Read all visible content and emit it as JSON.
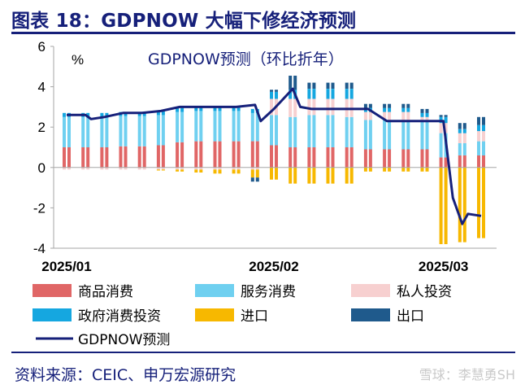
{
  "header": {
    "title": "图表 18：GDPNOW 大幅下修经济预测"
  },
  "footer": {
    "source": "资料来源：CEIC、申万宏源研究",
    "watermark": "雪球：李慧勇SH"
  },
  "colors": {
    "goods": "#e06666",
    "services": "#6fd0f0",
    "private_investment": "#f7d0d0",
    "government": "#15a7e0",
    "imports": "#f7b800",
    "exports": "#1f5a8c",
    "gdpnow": "#16207a",
    "title": "#16207a"
  },
  "chart_data": {
    "type": "bar",
    "stacked": true,
    "title": "GDPNOW预测（环比折年）",
    "unit_label": "%",
    "ylim": [
      -4,
      6
    ],
    "yticks": [
      "-4",
      "-2",
      "0",
      "2",
      "4",
      "6"
    ],
    "xtick_labels": [
      "2025/01",
      "2025/02",
      "2025/03"
    ],
    "xtick_at_update": [
      0,
      11,
      20
    ],
    "n_updates": 23,
    "legend": [
      {
        "key": "goods",
        "label": "商品消费"
      },
      {
        "key": "services",
        "label": "服务消费"
      },
      {
        "key": "private_investment",
        "label": "私人投资"
      },
      {
        "key": "government",
        "label": "政府消费投资"
      },
      {
        "key": "imports",
        "label": "进口"
      },
      {
        "key": "exports",
        "label": "出口"
      },
      {
        "key": "gdpnow",
        "label": "GDPNOW预测"
      }
    ],
    "series": [
      {
        "name": "商品消费",
        "key": "goods",
        "values": [
          1.0,
          1.0,
          1.0,
          1.05,
          1.05,
          1.1,
          1.25,
          1.3,
          1.3,
          1.3,
          1.3,
          1.1,
          1.0,
          1.0,
          1.0,
          1.0,
          0.9,
          0.9,
          0.9,
          0.9,
          0.5,
          0.6,
          0.6
        ]
      },
      {
        "name": "服务消费",
        "key": "services",
        "values": [
          1.5,
          1.5,
          1.5,
          1.5,
          1.5,
          1.5,
          1.5,
          1.5,
          1.5,
          1.5,
          1.4,
          1.5,
          1.5,
          1.6,
          1.6,
          1.5,
          1.45,
          1.45,
          1.45,
          1.4,
          1.2,
          0.6,
          0.7
        ]
      },
      {
        "name": "私人投资",
        "key": "private_investment",
        "values": [
          -0.1,
          -0.1,
          -0.1,
          -0.1,
          -0.1,
          -0.1,
          -0.1,
          -0.1,
          -0.1,
          -0.1,
          -0.1,
          0.8,
          0.9,
          0.8,
          0.8,
          0.9,
          0.4,
          0.4,
          0.4,
          0.2,
          0.5,
          0.5,
          0.5
        ]
      },
      {
        "name": "政府消费投资",
        "key": "government",
        "values": [
          0.2,
          0.2,
          0.2,
          0.2,
          0.2,
          0.2,
          0.2,
          0.2,
          0.2,
          0.2,
          0.2,
          0.35,
          0.45,
          0.5,
          0.5,
          0.5,
          0.2,
          0.2,
          0.2,
          0.2,
          0.3,
          0.2,
          0.3
        ]
      },
      {
        "name": "进口",
        "key": "imports",
        "values": [
          0.0,
          0.0,
          0.0,
          0.0,
          0.0,
          -0.05,
          -0.1,
          -0.15,
          -0.2,
          -0.2,
          -0.4,
          -0.6,
          -0.8,
          -0.8,
          -0.8,
          -0.8,
          -0.2,
          -0.2,
          -0.2,
          -0.2,
          -3.8,
          -3.7,
          -3.5
        ]
      },
      {
        "name": "出口",
        "key": "exports",
        "values": [
          0.0,
          0.0,
          0.0,
          0.0,
          0.0,
          0.0,
          0.0,
          0.0,
          0.0,
          0.0,
          -0.2,
          0.1,
          0.7,
          0.3,
          0.3,
          0.3,
          0.2,
          0.2,
          0.2,
          0.2,
          0.1,
          0.3,
          0.4
        ]
      }
    ],
    "gdpnow": {
      "name": "GDPNOW预测",
      "points": [
        {
          "u": 0,
          "y": 2.6
        },
        {
          "u": 1,
          "y": 2.6
        },
        {
          "u": 1.3,
          "y": 2.4
        },
        {
          "u": 2,
          "y": 2.5
        },
        {
          "u": 3,
          "y": 2.7
        },
        {
          "u": 4,
          "y": 2.7
        },
        {
          "u": 5,
          "y": 2.8
        },
        {
          "u": 6,
          "y": 3.0
        },
        {
          "u": 7,
          "y": 3.0
        },
        {
          "u": 8,
          "y": 3.0
        },
        {
          "u": 9,
          "y": 3.0
        },
        {
          "u": 10,
          "y": 3.1
        },
        {
          "u": 10.3,
          "y": 2.3
        },
        {
          "u": 11,
          "y": 2.9
        },
        {
          "u": 12,
          "y": 3.9
        },
        {
          "u": 12.4,
          "y": 3.0
        },
        {
          "u": 13,
          "y": 2.9
        },
        {
          "u": 14,
          "y": 2.9
        },
        {
          "u": 15,
          "y": 2.9
        },
        {
          "u": 16,
          "y": 2.9
        },
        {
          "u": 17,
          "y": 2.3
        },
        {
          "u": 18,
          "y": 2.3
        },
        {
          "u": 19,
          "y": 2.3
        },
        {
          "u": 20,
          "y": 2.3
        },
        {
          "u": 20.5,
          "y": -1.5
        },
        {
          "u": 21,
          "y": -2.8
        },
        {
          "u": 21.3,
          "y": -2.3
        },
        {
          "u": 22,
          "y": -2.4
        }
      ]
    }
  }
}
